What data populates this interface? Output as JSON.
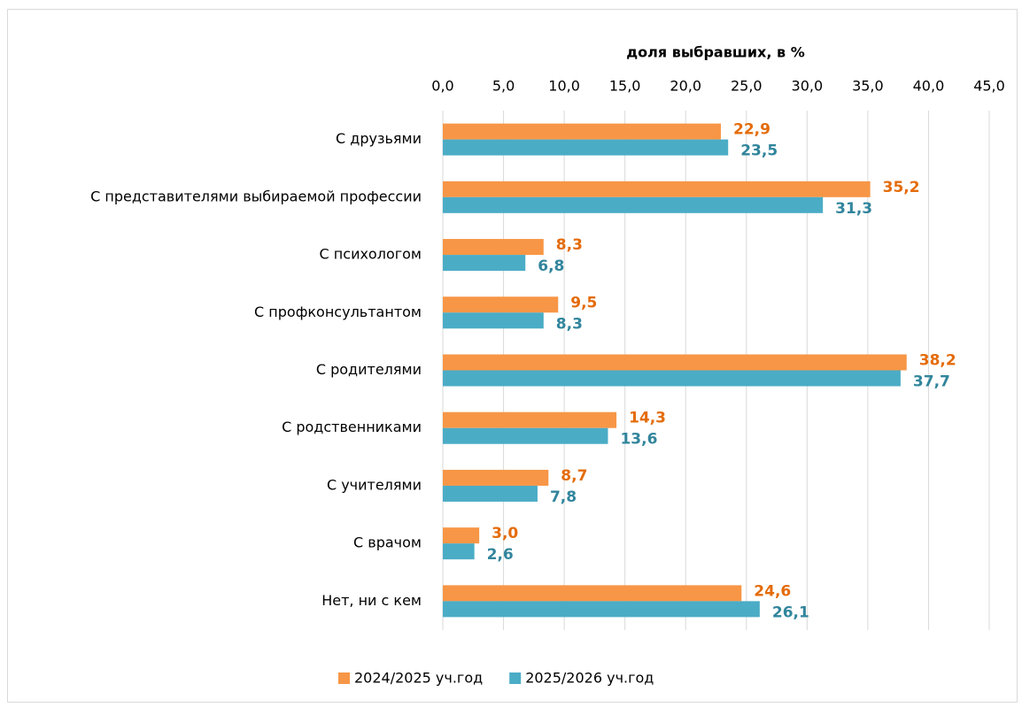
{
  "chart_data": {
    "type": "bar",
    "orientation": "horizontal",
    "x_label": "доля выбравших, в %",
    "categories": [
      "С друзьями",
      "С представителями выбираемой профессии",
      "С психологом",
      "С профконсультантом",
      "С родителями",
      "С родственниками",
      "С учителями",
      "С врачом",
      "Нет, ни с кем"
    ],
    "series": [
      {
        "name": "2024/2025 уч.год",
        "color": "#f79646",
        "label_color": "#e46c0a",
        "values": [
          22.9,
          35.2,
          8.3,
          9.5,
          38.2,
          14.3,
          8.7,
          3.0,
          24.6
        ],
        "value_labels": [
          "22,9",
          "35,2",
          "8,3",
          "9,5",
          "38,2",
          "14,3",
          "8,7",
          "3,0",
          "24,6"
        ]
      },
      {
        "name": "2025/2026 уч.год",
        "color": "#4bacc6",
        "label_color": "#31859c",
        "values": [
          23.5,
          31.3,
          6.8,
          8.3,
          37.7,
          13.6,
          7.8,
          2.6,
          26.1
        ],
        "value_labels": [
          "23,5",
          "31,3",
          "6,8",
          "8,3",
          "37,7",
          "13,6",
          "7,8",
          "2,6",
          "26,1"
        ]
      }
    ],
    "xlim": [
      0,
      45
    ],
    "xticks": [
      {
        "value": 0,
        "label": "0,0"
      },
      {
        "value": 5,
        "label": "5,0"
      },
      {
        "value": 10,
        "label": "10,0"
      },
      {
        "value": 15,
        "label": "15,0"
      },
      {
        "value": 20,
        "label": "20,0"
      },
      {
        "value": 25,
        "label": "25,0"
      },
      {
        "value": 30,
        "label": "30,0"
      },
      {
        "value": 35,
        "label": "35,0"
      },
      {
        "value": 40,
        "label": "40,0"
      },
      {
        "value": 45,
        "label": "45,0"
      }
    ],
    "grid": true,
    "legend": "bottom"
  }
}
